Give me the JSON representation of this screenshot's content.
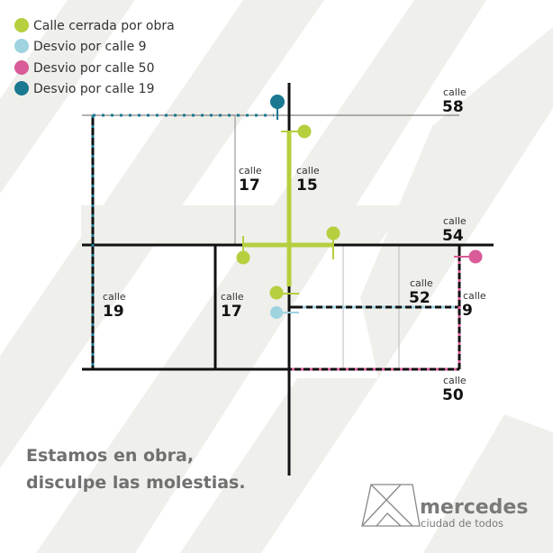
{
  "colors": {
    "closed": "#b5cf3f",
    "detour_9": "#9fd3e0",
    "detour_50": "#d95b97",
    "detour_19": "#1a7891",
    "background_stripes": "#efefeb"
  },
  "legend": [
    {
      "label": "Calle cerrada por obra",
      "color": "#b5cf3f"
    },
    {
      "label": "Desvio por calle 9",
      "color": "#9fd3e0"
    },
    {
      "label": "Desvio por calle 50",
      "color": "#d95b97"
    },
    {
      "label": "Desvio por calle 19",
      "color": "#1a7891"
    }
  ],
  "streets": {
    "c58": {
      "prefix": "calle",
      "number": "58"
    },
    "c17_top": {
      "prefix": "calle",
      "number": "17"
    },
    "c15": {
      "prefix": "calle",
      "number": "15"
    },
    "c54": {
      "prefix": "calle",
      "number": "54"
    },
    "c19": {
      "prefix": "calle",
      "number": "19"
    },
    "c17_bottom": {
      "prefix": "calle",
      "number": "17"
    },
    "c52": {
      "prefix": "calle",
      "number": "52"
    },
    "c9": {
      "prefix": "calle",
      "number": "9"
    },
    "c50": {
      "prefix": "calle",
      "number": "50"
    }
  },
  "message": {
    "line1": "Estamos en obra,",
    "line2": "disculpe las molestias."
  },
  "logo": {
    "name": "mercedes",
    "tagline": "ciudad de todos"
  }
}
